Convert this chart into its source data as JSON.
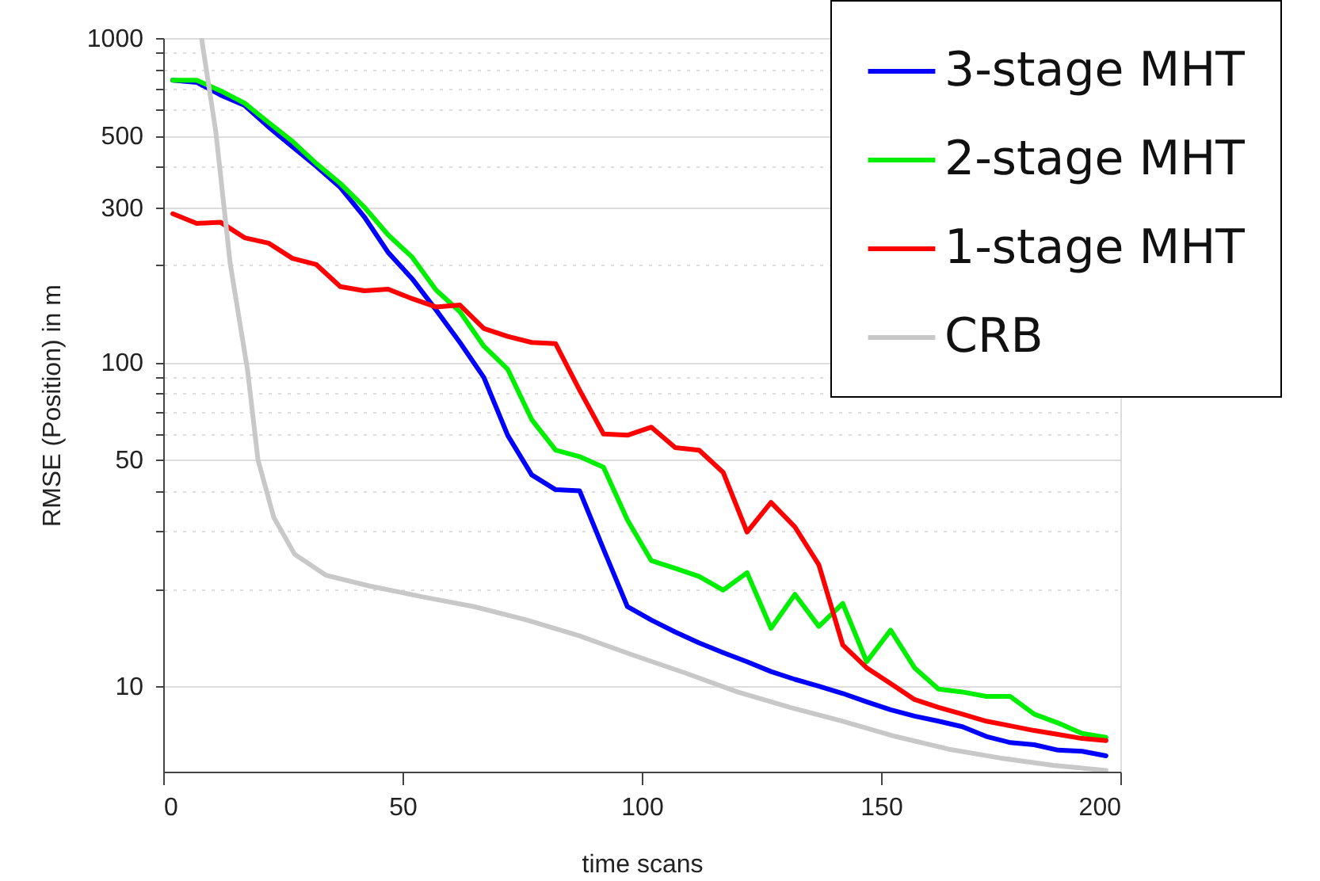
{
  "chart_data": {
    "type": "line",
    "xlabel": "time scans",
    "ylabel": "RMSE (Position) in m",
    "x": [
      2,
      7,
      12,
      17,
      22,
      27,
      32,
      37,
      42,
      47,
      52,
      57,
      62,
      67,
      72,
      77,
      82,
      87,
      92,
      97,
      102,
      107,
      112,
      117,
      122,
      127,
      132,
      137,
      142,
      147,
      152,
      157,
      162,
      167,
      172,
      177,
      182,
      187,
      192,
      197
    ],
    "series": [
      {
        "name": "3-stage MHT",
        "color": "#0000ff",
        "values": [
          741,
          730,
          667,
          620,
          532,
          462,
          402,
          346,
          281,
          218,
          181,
          145,
          115,
          89.7,
          59.4,
          44.9,
          40.4,
          40.1,
          26.5,
          17.6,
          16.0,
          14.7,
          13.6,
          12.7,
          11.9,
          11.1,
          10.5,
          10.0,
          9.5,
          8.95,
          8.46,
          8.09,
          7.8,
          7.5,
          7.0,
          6.7,
          6.6,
          6.35,
          6.3,
          6.1
        ]
      },
      {
        "name": "2-stage MHT",
        "color": "#00ee00",
        "values": [
          741,
          741,
          687,
          630,
          549,
          480,
          410,
          356,
          301,
          247,
          211,
          167,
          143,
          112,
          95,
          66.5,
          53.5,
          51.1,
          47.4,
          32.6,
          24.4,
          23.1,
          21.8,
          19.8,
          22.4,
          15.1,
          19.2,
          15.3,
          18.0,
          11.9,
          14.9,
          11.4,
          9.8,
          9.6,
          9.3,
          9.3,
          8.2,
          7.7,
          7.15,
          6.95
        ]
      },
      {
        "name": "1-stage MHT",
        "color": "#ff0000",
        "values": [
          287,
          268,
          270,
          242,
          233,
          209,
          200,
          171,
          166,
          168,
          157,
          148,
          150,
          127,
          120,
          115,
          114,
          82,
          60,
          59.5,
          63,
          54.5,
          53.5,
          45.7,
          29.9,
          36.9,
          31,
          23.7,
          13.4,
          11.4,
          10.2,
          9.1,
          8.6,
          8.2,
          7.8,
          7.55,
          7.3,
          7.1,
          6.9,
          6.8
        ]
      },
      {
        "name": "CRB",
        "color": "#c8c8c8",
        "x": [
          8,
          11,
          14,
          17.6,
          19.8,
          23.1,
          27.5,
          34,
          43,
          54,
          65,
          76,
          87,
          98,
          109,
          120,
          131,
          142,
          153,
          164,
          175,
          186,
          197
        ],
        "values": [
          1000,
          513,
          201,
          95,
          50,
          33.2,
          25.5,
          22,
          20.4,
          18.9,
          17.6,
          16.0,
          14.3,
          12.5,
          11.0,
          9.6,
          8.6,
          7.8,
          7.0,
          6.4,
          6.0,
          5.7,
          5.5
        ]
      }
    ],
    "xlim": [
      0,
      200
    ],
    "xticks": [
      0,
      50,
      100,
      150,
      200
    ],
    "ylim": [
      5.45,
      1000
    ],
    "yticks": [
      10,
      {
        "value": 20,
        "label": null
      },
      {
        "value": 30,
        "label": null
      },
      {
        "value": 40,
        "label": null
      },
      50,
      {
        "value": 60,
        "label": null
      },
      {
        "value": 70,
        "label": null
      },
      {
        "value": 80,
        "label": null
      },
      {
        "value": 90,
        "label": null
      },
      100,
      {
        "value": 200,
        "label": null
      },
      300,
      {
        "value": 400,
        "label": null
      },
      500,
      {
        "value": 600,
        "label": null
      },
      {
        "value": 700,
        "label": null
      },
      {
        "value": 800,
        "label": null
      },
      {
        "value": 900,
        "label": null
      },
      1000
    ],
    "log": "y",
    "grid": "y",
    "legend": "top right",
    "marker": "none",
    "line_style": "solid"
  }
}
